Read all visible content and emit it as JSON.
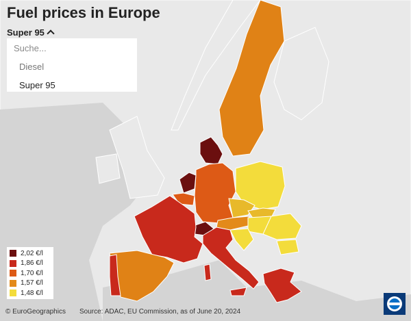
{
  "title": "Fuel prices in Europe",
  "fuel_selector": {
    "selected": "Super 95",
    "search_placeholder": "Suche...",
    "options": [
      "Diesel",
      "Super 95"
    ]
  },
  "legend": [
    {
      "label": "2,02 €/l",
      "color": "#6b0f0f"
    },
    {
      "label": "1,86 €/l",
      "color": "#c8291c"
    },
    {
      "label": "1,70 €/l",
      "color": "#dd5a16"
    },
    {
      "label": "1,57 €/l",
      "color": "#e38a1a"
    },
    {
      "label": "1,48 €/l",
      "color": "#f3dc3b"
    }
  ],
  "credit": "© EuroGeographics",
  "source": "Source: ADAC, EU Commission, as of June 20, 2024",
  "icons": {
    "logo": "broadcaster-logo-icon",
    "chevron": "chevron-up-icon"
  }
}
